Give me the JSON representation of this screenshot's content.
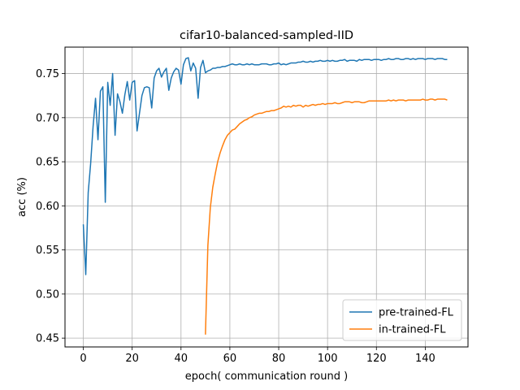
{
  "chart_data": {
    "type": "line",
    "title": "cifar10-balanced-sampled-IID",
    "xlabel": "epoch( communication round )",
    "ylabel": "acc (%)",
    "xlim": [
      -7.5,
      157.5
    ],
    "ylim": [
      0.44,
      0.78
    ],
    "xticks": [
      0,
      20,
      40,
      60,
      80,
      100,
      120,
      140
    ],
    "yticks": [
      0.45,
      0.5,
      0.55,
      0.6,
      0.65,
      0.7,
      0.75
    ],
    "ytick_labels": [
      "0.45",
      "0.50",
      "0.55",
      "0.60",
      "0.65",
      "0.70",
      "0.75"
    ],
    "grid": true,
    "legend_position": "lower-right",
    "series": [
      {
        "name": "pre-trained-FL",
        "color": "#1f77b4",
        "x": [
          0,
          1,
          2,
          3,
          4,
          5,
          6,
          7,
          8,
          9,
          10,
          11,
          12,
          13,
          14,
          15,
          16,
          17,
          18,
          19,
          20,
          21,
          22,
          23,
          24,
          25,
          26,
          27,
          28,
          29,
          30,
          31,
          32,
          33,
          34,
          35,
          36,
          37,
          38,
          39,
          40,
          41,
          42,
          43,
          44,
          45,
          46,
          47,
          48,
          49,
          50,
          51,
          52,
          53,
          54,
          55,
          56,
          57,
          58,
          59,
          60,
          61,
          62,
          63,
          64,
          65,
          66,
          67,
          68,
          69,
          70,
          71,
          72,
          73,
          74,
          75,
          76,
          77,
          78,
          79,
          80,
          81,
          82,
          83,
          84,
          85,
          86,
          87,
          88,
          89,
          90,
          91,
          92,
          93,
          94,
          95,
          96,
          97,
          98,
          99,
          100,
          101,
          102,
          103,
          104,
          105,
          106,
          107,
          108,
          109,
          110,
          111,
          112,
          113,
          114,
          115,
          116,
          117,
          118,
          119,
          120,
          121,
          122,
          123,
          124,
          125,
          126,
          127,
          128,
          129,
          130,
          131,
          132,
          133,
          134,
          135,
          136,
          137,
          138,
          139,
          140,
          141,
          142,
          143,
          144,
          145,
          146,
          147,
          148,
          149
        ],
        "values": [
          0.579,
          0.522,
          0.615,
          0.648,
          0.69,
          0.722,
          0.675,
          0.73,
          0.735,
          0.604,
          0.74,
          0.714,
          0.75,
          0.68,
          0.727,
          0.718,
          0.705,
          0.726,
          0.741,
          0.72,
          0.74,
          0.742,
          0.685,
          0.705,
          0.725,
          0.734,
          0.735,
          0.734,
          0.711,
          0.745,
          0.753,
          0.756,
          0.746,
          0.752,
          0.756,
          0.731,
          0.745,
          0.752,
          0.756,
          0.754,
          0.738,
          0.76,
          0.767,
          0.768,
          0.753,
          0.762,
          0.756,
          0.722,
          0.757,
          0.765,
          0.751,
          0.753,
          0.754,
          0.756,
          0.756,
          0.757,
          0.757,
          0.758,
          0.758,
          0.759,
          0.76,
          0.761,
          0.76,
          0.76,
          0.761,
          0.76,
          0.76,
          0.761,
          0.76,
          0.761,
          0.76,
          0.76,
          0.76,
          0.761,
          0.761,
          0.761,
          0.76,
          0.76,
          0.761,
          0.761,
          0.762,
          0.76,
          0.761,
          0.76,
          0.761,
          0.762,
          0.762,
          0.762,
          0.763,
          0.763,
          0.764,
          0.763,
          0.763,
          0.764,
          0.763,
          0.764,
          0.764,
          0.765,
          0.764,
          0.764,
          0.765,
          0.764,
          0.765,
          0.764,
          0.764,
          0.765,
          0.765,
          0.766,
          0.764,
          0.765,
          0.765,
          0.765,
          0.764,
          0.766,
          0.765,
          0.766,
          0.766,
          0.766,
          0.765,
          0.766,
          0.766,
          0.766,
          0.765,
          0.766,
          0.766,
          0.767,
          0.766,
          0.766,
          0.767,
          0.767,
          0.766,
          0.766,
          0.767,
          0.767,
          0.766,
          0.767,
          0.766,
          0.767,
          0.767,
          0.767,
          0.766,
          0.767,
          0.767,
          0.767,
          0.766,
          0.767,
          0.767,
          0.767,
          0.766,
          0.766
        ]
      },
      {
        "name": "in-trained-FL",
        "color": "#ff7f0e",
        "x": [
          50,
          51,
          52,
          53,
          54,
          55,
          56,
          57,
          58,
          59,
          60,
          61,
          62,
          63,
          64,
          65,
          66,
          67,
          68,
          69,
          70,
          71,
          72,
          73,
          74,
          75,
          76,
          77,
          78,
          79,
          80,
          81,
          82,
          83,
          84,
          85,
          86,
          87,
          88,
          89,
          90,
          91,
          92,
          93,
          94,
          95,
          96,
          97,
          98,
          99,
          100,
          101,
          102,
          103,
          104,
          105,
          106,
          107,
          108,
          109,
          110,
          111,
          112,
          113,
          114,
          115,
          116,
          117,
          118,
          119,
          120,
          121,
          122,
          123,
          124,
          125,
          126,
          127,
          128,
          129,
          130,
          131,
          132,
          133,
          134,
          135,
          136,
          137,
          138,
          139,
          140,
          141,
          142,
          143,
          144,
          145,
          146,
          147,
          148,
          149
        ],
        "values": [
          0.454,
          0.555,
          0.598,
          0.621,
          0.636,
          0.65,
          0.66,
          0.668,
          0.675,
          0.68,
          0.683,
          0.686,
          0.687,
          0.69,
          0.693,
          0.695,
          0.697,
          0.698,
          0.7,
          0.701,
          0.703,
          0.704,
          0.705,
          0.705,
          0.706,
          0.707,
          0.707,
          0.708,
          0.708,
          0.709,
          0.71,
          0.711,
          0.713,
          0.712,
          0.713,
          0.712,
          0.714,
          0.713,
          0.714,
          0.714,
          0.712,
          0.714,
          0.713,
          0.714,
          0.715,
          0.714,
          0.715,
          0.715,
          0.716,
          0.715,
          0.716,
          0.716,
          0.716,
          0.717,
          0.716,
          0.716,
          0.717,
          0.718,
          0.718,
          0.718,
          0.717,
          0.718,
          0.718,
          0.718,
          0.717,
          0.717,
          0.718,
          0.719,
          0.719,
          0.719,
          0.719,
          0.719,
          0.719,
          0.719,
          0.719,
          0.72,
          0.719,
          0.72,
          0.719,
          0.72,
          0.72,
          0.72,
          0.719,
          0.72,
          0.72,
          0.72,
          0.72,
          0.72,
          0.72,
          0.721,
          0.72,
          0.72,
          0.721,
          0.721,
          0.72,
          0.721,
          0.721,
          0.721,
          0.721,
          0.72
        ]
      }
    ]
  }
}
